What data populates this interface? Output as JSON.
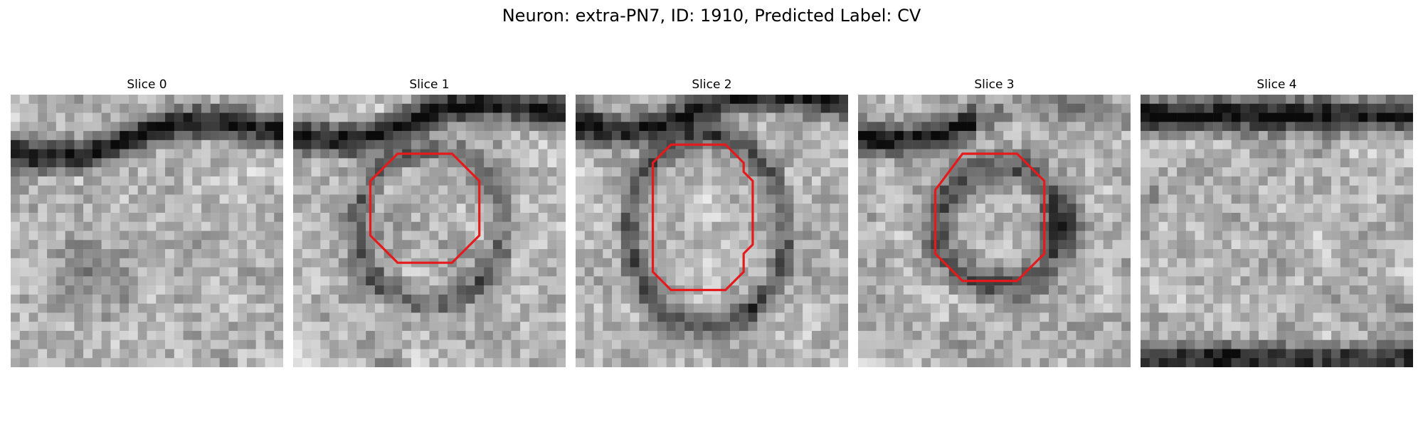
{
  "title": "Neuron: extra-PN7, ID: 1910, Predicted Label: CV",
  "contour_color": "#e41a1c",
  "slices": [
    {
      "label": "Slice 0",
      "contour": null
    },
    {
      "label": "Slice 1",
      "contour": [
        [
          11.5,
          1.5
        ],
        [
          17.5,
          1.5
        ],
        [
          20.5,
          4.5
        ],
        [
          20.5,
          10.5
        ],
        [
          17.5,
          13.5
        ],
        [
          11.5,
          13.5
        ],
        [
          8.5,
          10.5
        ],
        [
          8.5,
          4.5
        ]
      ]
    },
    {
      "label": "Slice 2",
      "contour": [
        [
          10.5,
          0.5
        ],
        [
          16.5,
          0.5
        ],
        [
          18.5,
          2.5
        ],
        [
          18.5,
          3.5
        ],
        [
          19.5,
          4.5
        ],
        [
          19.5,
          11.5
        ],
        [
          18.5,
          12.5
        ],
        [
          18.5,
          14.5
        ],
        [
          16.5,
          16.5
        ],
        [
          10.5,
          16.5
        ],
        [
          8.5,
          14.5
        ],
        [
          8.5,
          2.5
        ]
      ]
    },
    {
      "label": "Slice 3",
      "contour": [
        [
          11.5,
          1.5
        ],
        [
          17.5,
          1.5
        ],
        [
          20.5,
          4.5
        ],
        [
          20.5,
          12.5
        ],
        [
          17.5,
          15.5
        ],
        [
          11.5,
          15.5
        ],
        [
          8.5,
          12.5
        ],
        [
          8.5,
          5.5
        ]
      ]
    },
    {
      "label": "Slice 4",
      "contour": null
    }
  ]
}
